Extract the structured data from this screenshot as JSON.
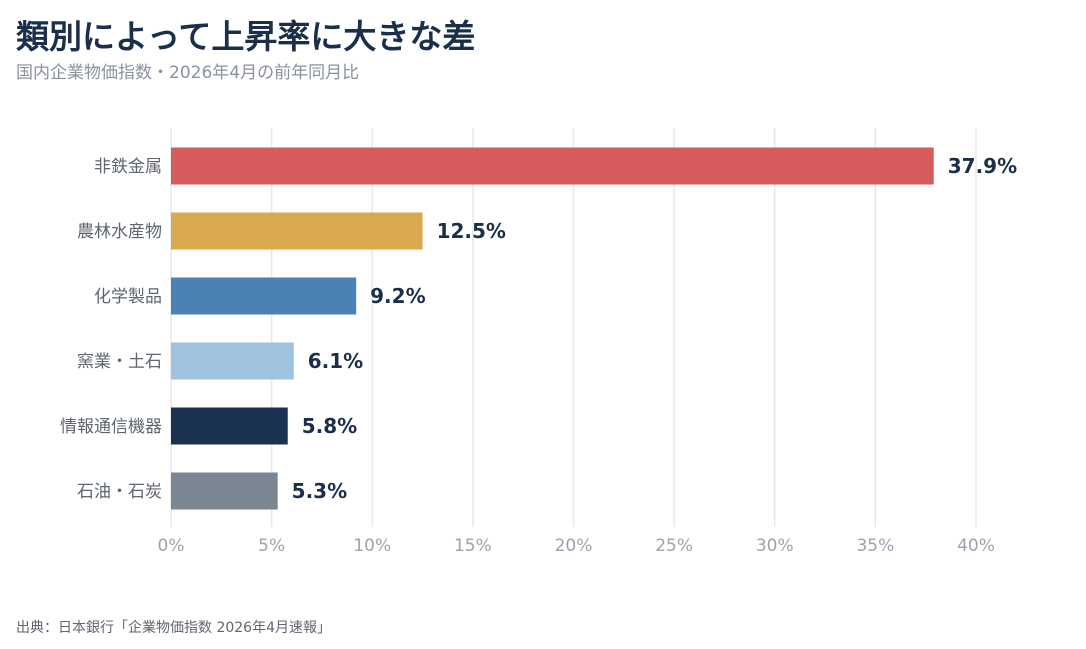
{
  "header": {
    "title": "類別によって上昇率に大きな差",
    "subtitle": "国内企業物価指数・2026年4月の前年同月比"
  },
  "footer": {
    "source": "出典：日本銀行「企業物価指数 2026年4月速報」"
  },
  "chart_data": {
    "type": "bar",
    "orientation": "horizontal",
    "categories": [
      "非鉄金属",
      "農林水産物",
      "化学製品",
      "窯業・土石",
      "情報通信機器",
      "石油・石炭"
    ],
    "values": [
      37.9,
      12.5,
      9.2,
      6.1,
      5.8,
      5.3
    ],
    "value_labels": [
      "37.9%",
      "12.5%",
      "9.2%",
      "6.1%",
      "5.8%",
      "5.3%"
    ],
    "colors": [
      "#d65b5d",
      "#d8a94e",
      "#4a82b4",
      "#9fc2de",
      "#1a324f",
      "#7a8692"
    ],
    "xlim": [
      0,
      40
    ],
    "xticks": [
      0,
      5,
      10,
      15,
      20,
      25,
      30,
      35,
      40
    ],
    "xtick_labels": [
      "0%",
      "5%",
      "10%",
      "15%",
      "20%",
      "25%",
      "30%",
      "35%",
      "40%"
    ],
    "grid": true,
    "colors_style": {
      "grid": "#e6e8eb",
      "tick_label": "#9aa3ad",
      "category_label": "#5f6670",
      "value_label": "#1b2f4a"
    }
  }
}
